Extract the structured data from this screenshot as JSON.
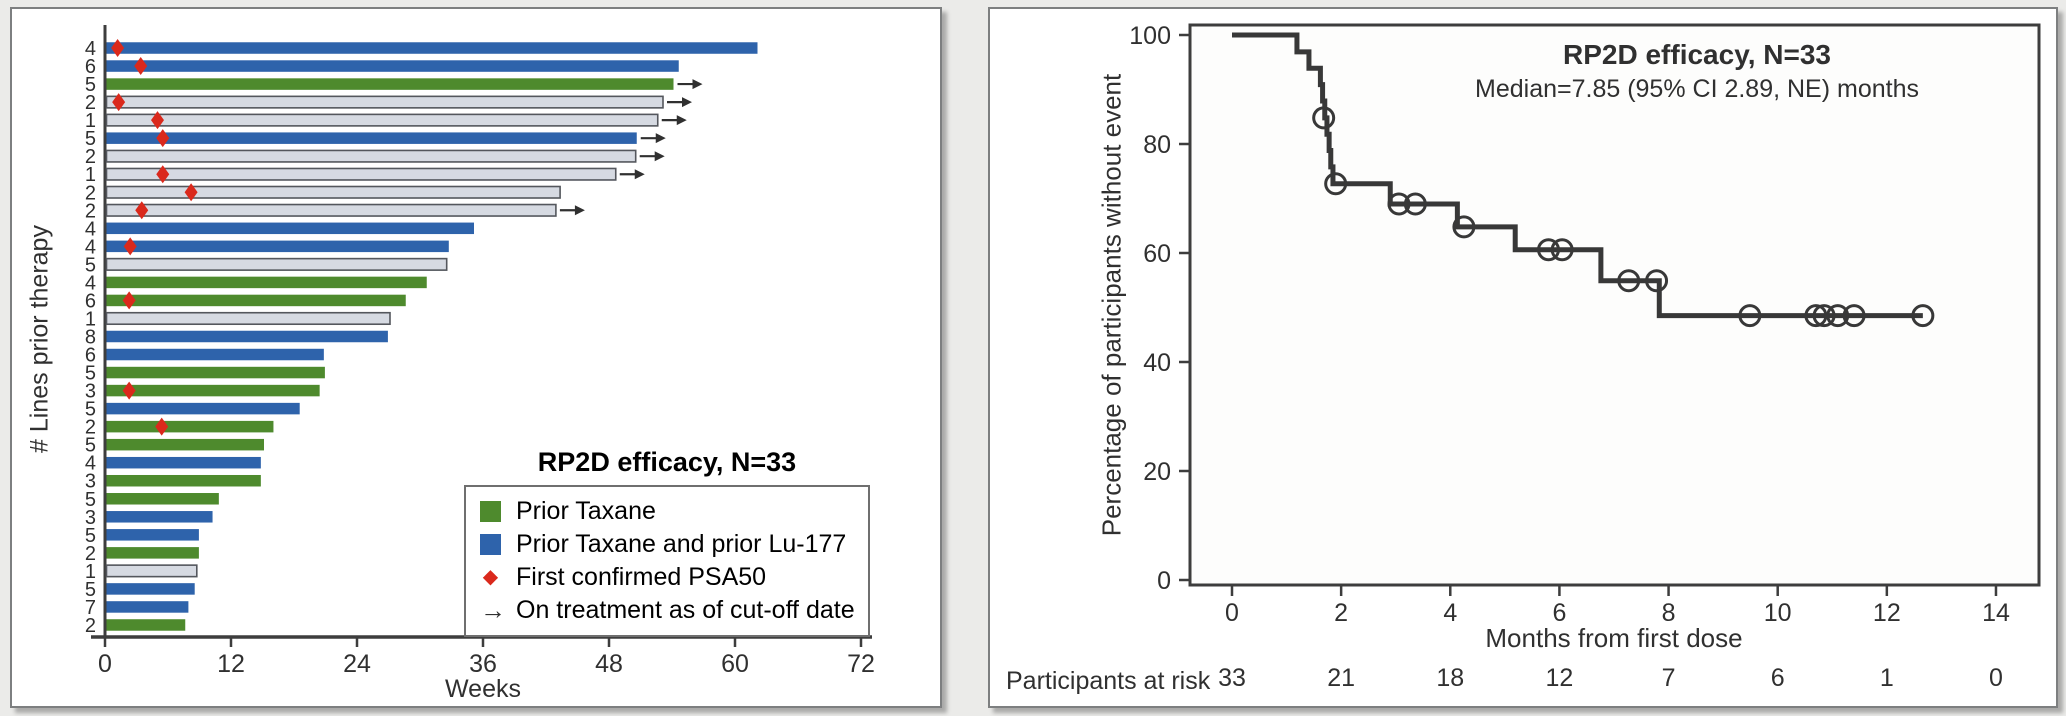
{
  "colors": {
    "green": "#4e8a2d",
    "blue": "#2e63ab",
    "gray": "#d6dae2",
    "grayline": "#54575d",
    "red": "#da291c",
    "ink": "#303030",
    "axis": "#3d3d3d",
    "curve": "#383838",
    "pagebg": "#ebebe9",
    "cardborder": "#7d7f80"
  },
  "left_panel": {
    "ylabel": "# Lines prior therapy",
    "xlabel": "Weeks",
    "legend": {
      "title": "RP2D efficacy, N=33",
      "items": [
        {
          "icon": "green-square",
          "label": "Prior Taxane"
        },
        {
          "icon": "blue-square",
          "label": "Prior Taxane and prior Lu-177"
        },
        {
          "icon": "red-diamond",
          "glyph": "◆",
          "label": "First confirmed PSA50"
        },
        {
          "icon": "right-arrow",
          "glyph": "→",
          "label": "On treatment as of cut-off date"
        }
      ]
    }
  },
  "right_panel": {
    "title": "RP2D efficacy, N=33",
    "subtitle": "Median=7.85 (95% CI 2.89, NE) months",
    "ylabel": "Percentage of participants without event",
    "xlabel": "Months from first dose",
    "risk_label": "Participants at risk"
  },
  "chart_data": [
    {
      "type": "bar",
      "subtype": "swimmer-plot",
      "orientation": "horizontal",
      "title": "RP2D efficacy, N=33",
      "xlabel": "Weeks",
      "ylabel": "# Lines prior therapy",
      "xticks": [
        0,
        12,
        24,
        36,
        48,
        60,
        72
      ],
      "xlim": [
        0,
        72
      ],
      "grid": false,
      "group_colors": {
        "prior_taxane": "green",
        "prior_taxane_lu177": "blue",
        "other": "gray"
      },
      "rows": [
        {
          "lines_prior_therapy": 4,
          "weeks": 62.0,
          "group": "prior_taxane_lu177",
          "psa50_week": 1.2,
          "ongoing": false
        },
        {
          "lines_prior_therapy": 6,
          "weeks": 54.5,
          "group": "prior_taxane_lu177",
          "psa50_week": 3.4,
          "ongoing": false
        },
        {
          "lines_prior_therapy": 5,
          "weeks": 54.0,
          "group": "prior_taxane",
          "psa50_week": null,
          "ongoing": true
        },
        {
          "lines_prior_therapy": 2,
          "weeks": 53.0,
          "group": "other",
          "psa50_week": 1.3,
          "ongoing": true
        },
        {
          "lines_prior_therapy": 1,
          "weeks": 52.5,
          "group": "other",
          "psa50_week": 5.0,
          "ongoing": true
        },
        {
          "lines_prior_therapy": 5,
          "weeks": 50.5,
          "group": "prior_taxane_lu177",
          "psa50_week": 5.5,
          "ongoing": true
        },
        {
          "lines_prior_therapy": 2,
          "weeks": 50.4,
          "group": "other",
          "psa50_week": null,
          "ongoing": true
        },
        {
          "lines_prior_therapy": 1,
          "weeks": 48.5,
          "group": "other",
          "psa50_week": 5.5,
          "ongoing": true
        },
        {
          "lines_prior_therapy": 2,
          "weeks": 43.2,
          "group": "other",
          "psa50_week": 8.2,
          "ongoing": false
        },
        {
          "lines_prior_therapy": 2,
          "weeks": 42.8,
          "group": "other",
          "psa50_week": 3.5,
          "ongoing": true
        },
        {
          "lines_prior_therapy": 4,
          "weeks": 35.0,
          "group": "prior_taxane_lu177",
          "psa50_week": null,
          "ongoing": false
        },
        {
          "lines_prior_therapy": 4,
          "weeks": 32.6,
          "group": "prior_taxane_lu177",
          "psa50_week": 2.4,
          "ongoing": false
        },
        {
          "lines_prior_therapy": 5,
          "weeks": 32.4,
          "group": "other",
          "psa50_week": null,
          "ongoing": false
        },
        {
          "lines_prior_therapy": 4,
          "weeks": 30.5,
          "group": "prior_taxane",
          "psa50_week": null,
          "ongoing": false
        },
        {
          "lines_prior_therapy": 6,
          "weeks": 28.5,
          "group": "prior_taxane",
          "psa50_week": 2.3,
          "ongoing": false
        },
        {
          "lines_prior_therapy": 1,
          "weeks": 27.0,
          "group": "other",
          "psa50_week": null,
          "ongoing": false
        },
        {
          "lines_prior_therapy": 8,
          "weeks": 26.8,
          "group": "prior_taxane_lu177",
          "psa50_week": null,
          "ongoing": false
        },
        {
          "lines_prior_therapy": 6,
          "weeks": 20.7,
          "group": "prior_taxane_lu177",
          "psa50_week": null,
          "ongoing": false
        },
        {
          "lines_prior_therapy": 5,
          "weeks": 20.8,
          "group": "prior_taxane",
          "psa50_week": null,
          "ongoing": false
        },
        {
          "lines_prior_therapy": 3,
          "weeks": 20.3,
          "group": "prior_taxane",
          "psa50_week": 2.3,
          "ongoing": false
        },
        {
          "lines_prior_therapy": 5,
          "weeks": 18.4,
          "group": "prior_taxane_lu177",
          "psa50_week": null,
          "ongoing": false
        },
        {
          "lines_prior_therapy": 2,
          "weeks": 15.9,
          "group": "prior_taxane",
          "psa50_week": 5.4,
          "ongoing": false
        },
        {
          "lines_prior_therapy": 5,
          "weeks": 15.0,
          "group": "prior_taxane",
          "psa50_week": null,
          "ongoing": false
        },
        {
          "lines_prior_therapy": 4,
          "weeks": 14.7,
          "group": "prior_taxane_lu177",
          "psa50_week": null,
          "ongoing": false
        },
        {
          "lines_prior_therapy": 3,
          "weeks": 14.7,
          "group": "prior_taxane",
          "psa50_week": null,
          "ongoing": false
        },
        {
          "lines_prior_therapy": 5,
          "weeks": 10.7,
          "group": "prior_taxane",
          "psa50_week": null,
          "ongoing": false
        },
        {
          "lines_prior_therapy": 3,
          "weeks": 10.1,
          "group": "prior_taxane_lu177",
          "psa50_week": null,
          "ongoing": false
        },
        {
          "lines_prior_therapy": 5,
          "weeks": 8.8,
          "group": "prior_taxane_lu177",
          "psa50_week": null,
          "ongoing": false
        },
        {
          "lines_prior_therapy": 2,
          "weeks": 8.8,
          "group": "prior_taxane",
          "psa50_week": null,
          "ongoing": false
        },
        {
          "lines_prior_therapy": 1,
          "weeks": 8.6,
          "group": "other",
          "psa50_week": null,
          "ongoing": false
        },
        {
          "lines_prior_therapy": 5,
          "weeks": 8.4,
          "group": "prior_taxane_lu177",
          "psa50_week": null,
          "ongoing": false
        },
        {
          "lines_prior_therapy": 7,
          "weeks": 7.8,
          "group": "prior_taxane_lu177",
          "psa50_week": null,
          "ongoing": false
        },
        {
          "lines_prior_therapy": 2,
          "weeks": 7.5,
          "group": "prior_taxane",
          "psa50_week": null,
          "ongoing": false
        }
      ]
    },
    {
      "type": "line",
      "subtype": "kaplan-meier",
      "title": "RP2D efficacy, N=33",
      "annotation": "Median=7.85 (95% CI 2.89, NE) months",
      "median_months": 7.85,
      "ci_95": "2.89, NE",
      "xlabel": "Months from first dose",
      "ylabel": "Percentage of participants without event",
      "xticks": [
        0,
        2,
        4,
        6,
        8,
        10,
        12,
        14
      ],
      "yticks": [
        0,
        20,
        40,
        60,
        80,
        100
      ],
      "xlim": [
        0,
        14.8
      ],
      "ylim": [
        0,
        100
      ],
      "grid": false,
      "start": [
        0,
        100
      ],
      "drops": [
        [
          1.19,
          96.9
        ],
        [
          1.41,
          93.9
        ],
        [
          1.62,
          90.9
        ],
        [
          1.66,
          87.9
        ],
        [
          1.7,
          84.8
        ],
        [
          1.74,
          81.8
        ],
        [
          1.78,
          78.8
        ],
        [
          1.81,
          75.8
        ],
        [
          1.85,
          72.7
        ],
        [
          2.9,
          69.0
        ],
        [
          4.13,
          64.8
        ],
        [
          5.19,
          60.6
        ],
        [
          6.76,
          54.9
        ],
        [
          7.83,
          48.5
        ]
      ],
      "end_time": 12.66,
      "censored": [
        [
          1.68,
          84.8
        ],
        [
          1.9,
          72.7
        ],
        [
          3.06,
          69.0
        ],
        [
          3.36,
          69.0
        ],
        [
          4.25,
          64.8
        ],
        [
          5.8,
          60.6
        ],
        [
          6.05,
          60.6
        ],
        [
          7.27,
          54.9
        ],
        [
          7.78,
          54.9
        ],
        [
          9.49,
          48.5
        ],
        [
          10.7,
          48.5
        ],
        [
          10.85,
          48.5
        ],
        [
          11.1,
          48.5
        ],
        [
          11.4,
          48.5
        ],
        [
          12.66,
          48.5
        ]
      ],
      "at_risk": {
        "label": "Participants at risk",
        "times": [
          0,
          2,
          4,
          6,
          8,
          10,
          12,
          14
        ],
        "counts": [
          33,
          21,
          18,
          12,
          7,
          6,
          1,
          0
        ]
      }
    }
  ]
}
